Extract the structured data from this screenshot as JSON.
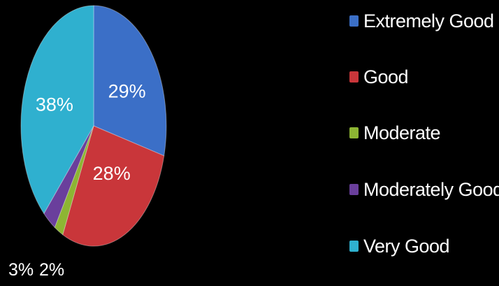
{
  "chart_data": {
    "type": "pie",
    "categories": [
      "Extremely Good",
      "Good",
      "Moderate",
      "Moderately Good",
      "Very Good"
    ],
    "values": [
      29,
      28,
      2,
      3,
      38
    ],
    "labels": [
      "29%",
      "28%",
      "2%",
      "3%",
      "38%"
    ],
    "colors": [
      "#3b6fc7",
      "#c9363a",
      "#8db533",
      "#6a3f9c",
      "#2fb0cf"
    ],
    "legend_position": "right",
    "title": ""
  }
}
